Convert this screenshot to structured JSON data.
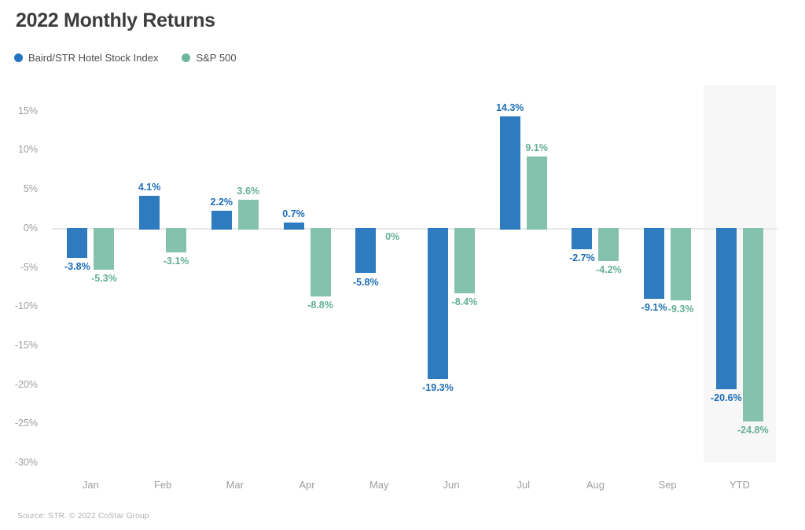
{
  "title": "2022 Monthly Returns",
  "legend": {
    "items": [
      {
        "label": "Baird/STR Hotel Stock Index",
        "color": "#2273c2"
      },
      {
        "label": "S&P 500",
        "color": "#6cb79e"
      }
    ]
  },
  "source": "Source: STR. © 2022 CoStar Group",
  "colors": {
    "background": "#ffffff",
    "title_text": "#3d3d3d",
    "legend_text": "#4d4d4d",
    "axis_text": "#9e9e9e",
    "zero_line": "#e8e8e8",
    "highlight_band": "#f7f7f7",
    "source_text": "#b1b1b1"
  },
  "chart_data": {
    "type": "bar",
    "title": "2022 Monthly Returns",
    "categories": [
      "Jan",
      "Feb",
      "Mar",
      "Apr",
      "May",
      "Jun",
      "Jul",
      "Aug",
      "Sep",
      "YTD"
    ],
    "series": [
      {
        "name": "Baird/STR Hotel Stock Index",
        "color": "#2f7bbf",
        "label_color": "#1d6db5",
        "values": [
          -3.8,
          4.1,
          2.2,
          0.7,
          -5.8,
          -19.3,
          14.3,
          -2.7,
          -9.1,
          -20.6
        ]
      },
      {
        "name": "S&P 500",
        "color": "#85c2ad",
        "label_color": "#64af97",
        "values": [
          -5.3,
          -3.1,
          3.6,
          -8.8,
          0,
          -8.4,
          9.1,
          -4.2,
          -9.3,
          -24.8
        ]
      }
    ],
    "value_suffix": "%",
    "xlabel": "",
    "ylabel": "",
    "y_ticks": [
      15,
      10,
      5,
      0,
      -5,
      -10,
      -15,
      -20,
      -25,
      -30
    ],
    "ylim": [
      -30,
      18.3
    ],
    "grid": "zero-line-only",
    "legend_position": "top-left",
    "highlight_category": "YTD",
    "data_labels": "on, colored per series, above positive bars / below negative bars"
  }
}
